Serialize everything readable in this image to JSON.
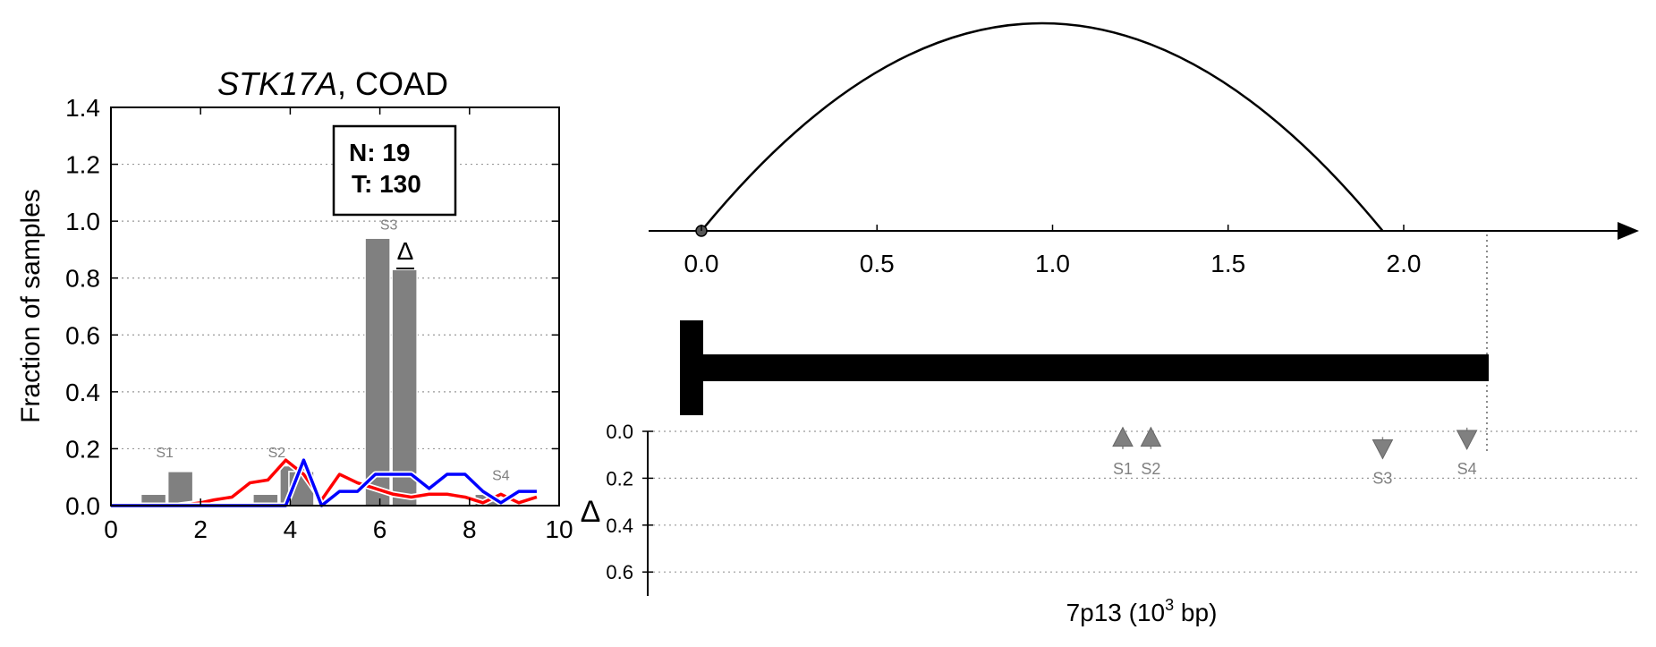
{
  "chart_data": [
    {
      "type": "bar",
      "title_gene": "STK17A",
      "title_rest": ", COAD",
      "ylabel": "Fraction of samples",
      "xlim": [
        0,
        10
      ],
      "ylim": [
        0,
        1.4
      ],
      "xticks": [
        "0",
        "2",
        "4",
        "6",
        "8",
        "10"
      ],
      "yticks": [
        "0.0",
        "0.2",
        "0.4",
        "0.6",
        "0.8",
        "1.0",
        "1.2",
        "1.4"
      ],
      "legend_box": {
        "line1": "N: 19",
        "line2": "T: 130"
      },
      "delta_symbol": "Δ",
      "bars": [
        {
          "x": 0.95,
          "value": 0.04
        },
        {
          "x": 1.55,
          "value": 0.12
        },
        {
          "x": 3.45,
          "value": 0.04
        },
        {
          "x": 4.05,
          "value": 0.14
        },
        {
          "x": 4.25,
          "value": 0.12
        },
        {
          "x": 5.95,
          "value": 0.94
        },
        {
          "x": 6.55,
          "value": 0.83
        },
        {
          "x": 6.55,
          "value": 0.11
        },
        {
          "x": 8.4,
          "value": 0.04
        }
      ],
      "site_labels": [
        {
          "text": "S1",
          "x": 1.2,
          "y": 0.17
        },
        {
          "text": "S2",
          "x": 3.7,
          "y": 0.17
        },
        {
          "text": "S3",
          "x": 6.2,
          "y": 0.97
        },
        {
          "text": "S4",
          "x": 8.7,
          "y": 0.09
        }
      ],
      "series": [
        {
          "color": "#ff0000",
          "x": [
            0,
            0.5,
            1,
            1.5,
            2,
            2.3,
            2.7,
            3.1,
            3.5,
            3.9,
            4.3,
            4.7,
            5.1,
            5.5,
            5.9,
            6.3,
            6.7,
            7.1,
            7.5,
            7.9,
            8.3,
            8.7,
            9.1,
            9.5
          ],
          "values": [
            0,
            0,
            0,
            0,
            0.01,
            0.02,
            0.03,
            0.08,
            0.09,
            0.16,
            0.11,
            0.02,
            0.11,
            0.08,
            0.06,
            0.04,
            0.03,
            0.04,
            0.04,
            0.03,
            0.01,
            0.04,
            0.01,
            0.03
          ]
        },
        {
          "color": "#0000ff",
          "x": [
            0,
            0.5,
            1,
            1.5,
            2,
            2.5,
            3,
            3.5,
            3.9,
            4.3,
            4.7,
            5.1,
            5.5,
            5.9,
            6.3,
            6.7,
            7.1,
            7.5,
            7.9,
            8.3,
            8.7,
            9.1,
            9.5
          ],
          "values": [
            0,
            0,
            0,
            0,
            0,
            0,
            0,
            0,
            0,
            0.16,
            0,
            0.05,
            0.05,
            0.11,
            0.11,
            0.11,
            0.06,
            0.11,
            0.11,
            0.05,
            0.01,
            0.05,
            0.05
          ]
        }
      ]
    },
    {
      "type": "diagram",
      "xlabel_main": "7p13 (10",
      "xlabel_sup": "3",
      "xlabel_end": " bp)",
      "arc_xlim": [
        0,
        2.2
      ],
      "arc_xticks": [
        "0.0",
        "0.5",
        "1.0",
        "1.5",
        "2.0"
      ],
      "gene_end": 1.94,
      "delta_axis_label": "Δ",
      "delta_ylim": [
        0,
        0.7
      ],
      "delta_yticks": [
        "0.0",
        "0.2",
        "0.4",
        "0.6"
      ],
      "markers": [
        {
          "label": "S1",
          "x": 1.2,
          "delta": 0.03,
          "direction": "up"
        },
        {
          "label": "S2",
          "x": 1.28,
          "delta": 0.03,
          "direction": "up"
        },
        {
          "label": "S3",
          "x": 1.94,
          "delta": 0.07,
          "direction": "down"
        },
        {
          "label": "S4",
          "x": 2.18,
          "delta": 0.03,
          "direction": "down"
        }
      ]
    }
  ]
}
